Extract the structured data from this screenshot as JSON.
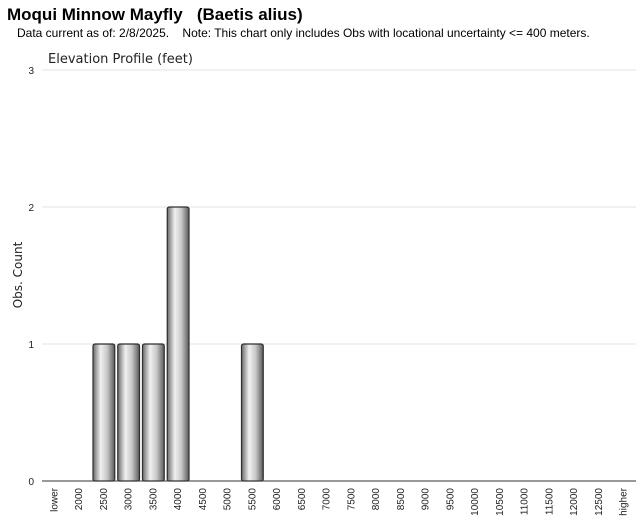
{
  "page": {
    "title": "Moqui Minnow Mayfly   (Baetis alius)",
    "subtitle": "Data current as of: 2/8/2025.    Note: This chart only includes Obs with locational uncertainty <= 400 meters."
  },
  "chart_data": {
    "type": "bar",
    "title": "Elevation Profile (feet)",
    "xlabel": "",
    "ylabel": "Obs. Count",
    "categories": [
      "lower",
      "2000",
      "2500",
      "3000",
      "3500",
      "4000",
      "4500",
      "5000",
      "5500",
      "6000",
      "6500",
      "7000",
      "7500",
      "8000",
      "8500",
      "9000",
      "9500",
      "10000",
      "10500",
      "11000",
      "11500",
      "12000",
      "12500",
      "higher"
    ],
    "values": [
      0,
      0,
      1,
      1,
      1,
      2,
      0,
      0,
      1,
      0,
      0,
      0,
      0,
      0,
      0,
      0,
      0,
      0,
      0,
      0,
      0,
      0,
      0,
      0
    ],
    "ylim": [
      0,
      3
    ],
    "yticks": [
      0,
      1,
      2,
      3
    ],
    "grid": true,
    "legend": "none",
    "colors": {
      "bar_light": "#f2f2f2",
      "bar_mid": "#9a9a9a",
      "bar_dark": "#5a5a5a",
      "bar_stroke": "#2e2e2e",
      "grid": "#e3e3e3",
      "axis": "#333333"
    }
  }
}
